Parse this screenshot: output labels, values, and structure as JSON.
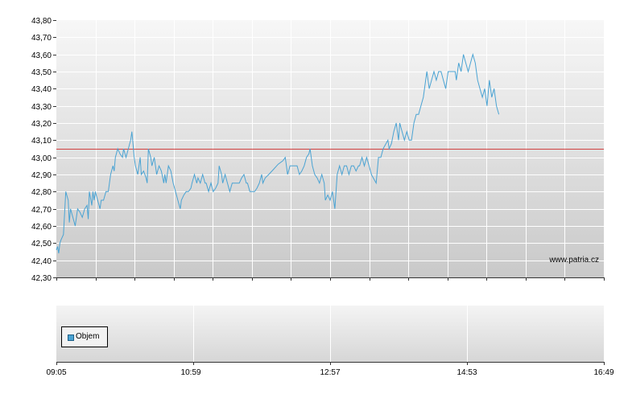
{
  "chart_data": [
    {
      "type": "line",
      "title": "",
      "xlabel": "",
      "ylabel": "",
      "ylim": [
        42.3,
        43.8
      ],
      "y_ticks": [
        "42,30",
        "42,40",
        "42,50",
        "42,60",
        "42,70",
        "42,80",
        "42,90",
        "43,00",
        "43,10",
        "43,20",
        "43,30",
        "43,40",
        "43,50",
        "43,60",
        "43,70",
        "43,80"
      ],
      "x_range": [
        "09:05",
        "16:49"
      ],
      "grid": true,
      "reference_line": {
        "value": 43.05,
        "color": "#d04040"
      },
      "watermark": "www.patria.cz",
      "series": [
        {
          "color": "#4aa3d3",
          "points": [
            [
              "09:05",
              42.46
            ],
            [
              "09:06",
              42.48
            ],
            [
              "09:07",
              42.44
            ],
            [
              "09:08",
              42.5
            ],
            [
              "09:09",
              42.52
            ],
            [
              "09:11",
              42.55
            ],
            [
              "09:13",
              42.8
            ],
            [
              "09:15",
              42.75
            ],
            [
              "09:16",
              42.62
            ],
            [
              "09:17",
              42.7
            ],
            [
              "09:19",
              42.65
            ],
            [
              "09:21",
              42.6
            ],
            [
              "09:23",
              42.7
            ],
            [
              "09:25",
              42.68
            ],
            [
              "09:27",
              42.65
            ],
            [
              "09:29",
              42.7
            ],
            [
              "09:31",
              42.72
            ],
            [
              "09:32",
              42.64
            ],
            [
              "09:33",
              42.8
            ],
            [
              "09:35",
              42.72
            ],
            [
              "09:36",
              42.8
            ],
            [
              "09:37",
              42.75
            ],
            [
              "09:38",
              42.8
            ],
            [
              "09:40",
              42.75
            ],
            [
              "09:42",
              42.7
            ],
            [
              "09:43",
              42.75
            ],
            [
              "09:45",
              42.75
            ],
            [
              "09:47",
              42.8
            ],
            [
              "09:49",
              42.8
            ],
            [
              "09:51",
              42.9
            ],
            [
              "09:53",
              42.95
            ],
            [
              "09:54",
              42.92
            ],
            [
              "09:55",
              43.0
            ],
            [
              "09:57",
              43.05
            ],
            [
              "09:59",
              43.02
            ],
            [
              "10:01",
              43.0
            ],
            [
              "10:02",
              43.05
            ],
            [
              "10:04",
              43.0
            ],
            [
              "10:06",
              43.05
            ],
            [
              "10:08",
              43.1
            ],
            [
              "10:09",
              43.15
            ],
            [
              "10:11",
              43.0
            ],
            [
              "10:12",
              42.95
            ],
            [
              "10:14",
              42.9
            ],
            [
              "10:16",
              43.0
            ],
            [
              "10:17",
              42.9
            ],
            [
              "10:19",
              42.92
            ],
            [
              "10:21",
              42.88
            ],
            [
              "10:22",
              42.85
            ],
            [
              "10:23",
              43.05
            ],
            [
              "10:25",
              43.0
            ],
            [
              "10:26",
              42.95
            ],
            [
              "10:28",
              43.0
            ],
            [
              "10:30",
              42.9
            ],
            [
              "10:32",
              42.95
            ],
            [
              "10:34",
              42.92
            ],
            [
              "10:36",
              42.85
            ],
            [
              "10:37",
              42.9
            ],
            [
              "10:38",
              42.85
            ],
            [
              "10:40",
              42.95
            ],
            [
              "10:42",
              42.92
            ],
            [
              "10:44",
              42.85
            ],
            [
              "10:46",
              42.8
            ],
            [
              "10:48",
              42.75
            ],
            [
              "10:50",
              42.7
            ],
            [
              "10:51",
              42.75
            ],
            [
              "10:53",
              42.78
            ],
            [
              "10:55",
              42.8
            ],
            [
              "10:57",
              42.8
            ],
            [
              "10:59",
              42.82
            ],
            [
              "11:00",
              42.85
            ],
            [
              "11:02",
              42.9
            ],
            [
              "11:04",
              42.85
            ],
            [
              "11:05",
              42.88
            ],
            [
              "11:07",
              42.85
            ],
            [
              "11:09",
              42.9
            ],
            [
              "11:11",
              42.85
            ],
            [
              "11:12",
              42.85
            ],
            [
              "11:14",
              42.8
            ],
            [
              "11:16",
              42.85
            ],
            [
              "11:18",
              42.8
            ],
            [
              "11:20",
              42.82
            ],
            [
              "11:22",
              42.85
            ],
            [
              "11:23",
              42.95
            ],
            [
              "11:25",
              42.9
            ],
            [
              "11:26",
              42.85
            ],
            [
              "11:28",
              42.9
            ],
            [
              "11:30",
              42.85
            ],
            [
              "11:32",
              42.8
            ],
            [
              "11:34",
              42.85
            ],
            [
              "11:36",
              42.85
            ],
            [
              "11:38",
              42.85
            ],
            [
              "11:40",
              42.85
            ],
            [
              "11:42",
              42.88
            ],
            [
              "11:44",
              42.9
            ],
            [
              "11:46",
              42.85
            ],
            [
              "11:47",
              42.85
            ],
            [
              "11:49",
              42.8
            ],
            [
              "11:51",
              42.8
            ],
            [
              "11:53",
              42.8
            ],
            [
              "11:55",
              42.82
            ],
            [
              "11:57",
              42.85
            ],
            [
              "11:59",
              42.9
            ],
            [
              "12:00",
              42.85
            ],
            [
              "12:02",
              42.88
            ],
            [
              "12:05",
              42.9
            ],
            [
              "12:09",
              42.93
            ],
            [
              "12:13",
              42.96
            ],
            [
              "12:17",
              42.98
            ],
            [
              "12:19",
              43.0
            ],
            [
              "12:21",
              42.9
            ],
            [
              "12:23",
              42.95
            ],
            [
              "12:25",
              42.95
            ],
            [
              "12:27",
              42.95
            ],
            [
              "12:29",
              42.95
            ],
            [
              "12:31",
              42.9
            ],
            [
              "12:33",
              42.92
            ],
            [
              "12:35",
              42.95
            ],
            [
              "12:37",
              43.0
            ],
            [
              "12:39",
              43.02
            ],
            [
              "12:40",
              43.05
            ],
            [
              "12:42",
              42.95
            ],
            [
              "12:44",
              42.9
            ],
            [
              "12:46",
              42.88
            ],
            [
              "12:48",
              42.85
            ],
            [
              "12:50",
              42.9
            ],
            [
              "12:52",
              42.85
            ],
            [
              "12:53",
              42.75
            ],
            [
              "12:55",
              42.78
            ],
            [
              "12:57",
              42.75
            ],
            [
              "12:59",
              42.8
            ],
            [
              "13:01",
              42.7
            ],
            [
              "13:03",
              42.9
            ],
            [
              "13:05",
              42.95
            ],
            [
              "13:07",
              42.9
            ],
            [
              "13:09",
              42.95
            ],
            [
              "13:11",
              42.95
            ],
            [
              "13:13",
              42.9
            ],
            [
              "13:15",
              42.95
            ],
            [
              "13:17",
              42.95
            ],
            [
              "13:19",
              42.92
            ],
            [
              "13:21",
              42.95
            ],
            [
              "13:22",
              42.95
            ],
            [
              "13:24",
              43.0
            ],
            [
              "13:26",
              42.95
            ],
            [
              "13:28",
              43.0
            ],
            [
              "13:30",
              42.95
            ],
            [
              "13:32",
              42.9
            ],
            [
              "13:36",
              42.85
            ],
            [
              "13:38",
              43.0
            ],
            [
              "13:40",
              43.0
            ],
            [
              "13:42",
              43.05
            ],
            [
              "13:46",
              43.1
            ],
            [
              "13:47",
              43.05
            ],
            [
              "13:49",
              43.08
            ],
            [
              "13:51",
              43.15
            ],
            [
              "13:53",
              43.2
            ],
            [
              "13:55",
              43.1
            ],
            [
              "13:56",
              43.2
            ],
            [
              "13:58",
              43.15
            ],
            [
              "14:00",
              43.1
            ],
            [
              "14:02",
              43.15
            ],
            [
              "14:04",
              43.1
            ],
            [
              "14:06",
              43.1
            ],
            [
              "14:08",
              43.2
            ],
            [
              "14:10",
              43.25
            ],
            [
              "14:12",
              43.25
            ],
            [
              "14:14",
              43.3
            ],
            [
              "14:16",
              43.35
            ],
            [
              "14:18",
              43.45
            ],
            [
              "14:19",
              43.5
            ],
            [
              "14:21",
              43.4
            ],
            [
              "14:23",
              43.45
            ],
            [
              "14:25",
              43.5
            ],
            [
              "14:27",
              43.45
            ],
            [
              "14:29",
              43.5
            ],
            [
              "14:31",
              43.5
            ],
            [
              "14:33",
              43.45
            ],
            [
              "14:35",
              43.4
            ],
            [
              "14:37",
              43.5
            ],
            [
              "14:39",
              43.5
            ],
            [
              "14:41",
              43.5
            ],
            [
              "14:43",
              43.5
            ],
            [
              "14:44",
              43.45
            ],
            [
              "14:46",
              43.55
            ],
            [
              "14:48",
              43.5
            ],
            [
              "14:50",
              43.6
            ],
            [
              "14:52",
              43.55
            ],
            [
              "14:54",
              43.5
            ],
            [
              "14:56",
              43.55
            ],
            [
              "14:58",
              43.6
            ],
            [
              "15:00",
              43.55
            ],
            [
              "15:02",
              43.45
            ],
            [
              "15:04",
              43.4
            ],
            [
              "15:06",
              43.35
            ],
            [
              "15:08",
              43.4
            ],
            [
              "15:10",
              43.3
            ],
            [
              "15:12",
              43.45
            ],
            [
              "15:14",
              43.35
            ],
            [
              "15:16",
              43.4
            ],
            [
              "15:18",
              43.3
            ],
            [
              "15:20",
              43.25
            ]
          ]
        }
      ]
    },
    {
      "type": "bar",
      "title": "",
      "legend": {
        "position": "bottom-left",
        "entries": [
          "Objem"
        ]
      },
      "x_ticks": [
        "09:05",
        "10:59",
        "12:57",
        "14:53",
        "16:49"
      ],
      "series": [
        {
          "name": "Objem",
          "color": "#4aa3d3",
          "values": []
        }
      ]
    }
  ]
}
